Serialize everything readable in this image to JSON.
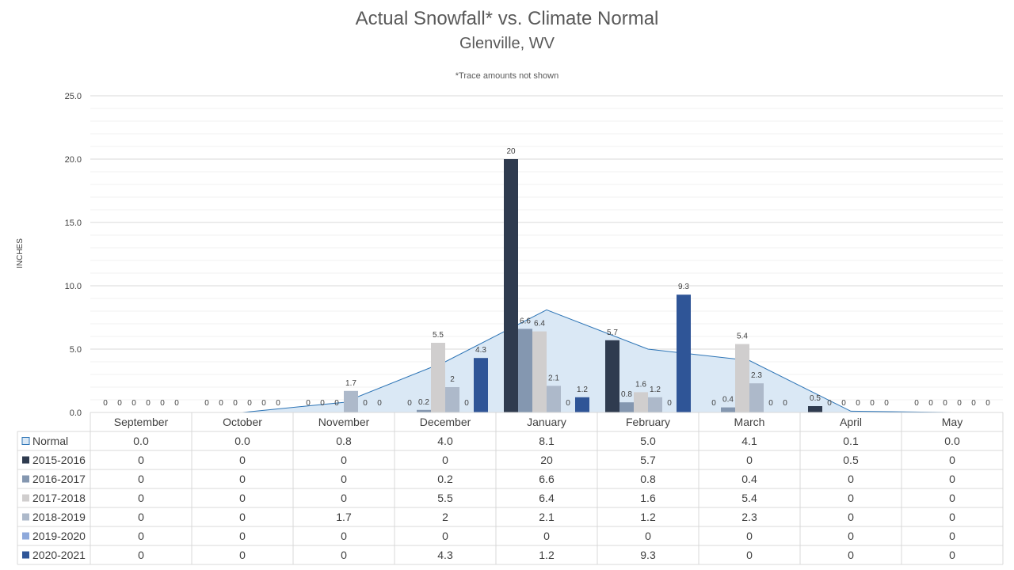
{
  "title": "Actual Snowfall* vs. Climate Normal",
  "subtitle": "Glenville, WV",
  "note": "*Trace amounts not shown",
  "chart_data": {
    "type": "bar",
    "ylabel": "INCHES",
    "ylim": [
      0,
      25
    ],
    "yticks": [
      "0.0",
      "5.0",
      "10.0",
      "15.0",
      "20.0",
      "25.0"
    ],
    "categories": [
      "September",
      "October",
      "November",
      "December",
      "January",
      "February",
      "March",
      "April",
      "May"
    ],
    "normal": {
      "name": "Normal",
      "type": "area",
      "values": [
        0.0,
        0.0,
        0.8,
        4.0,
        8.1,
        5.0,
        4.1,
        0.1,
        0.0
      ],
      "labels": [
        "0.0",
        "0.0",
        "0.8",
        "4.0",
        "8.1",
        "5.0",
        "4.1",
        "0.1",
        "0.0"
      ],
      "color": "#DAE8F5",
      "line_color": "#2E75B6"
    },
    "series": [
      {
        "name": "2015-2016",
        "color": "#2F3B4F",
        "values": [
          0,
          0,
          0,
          0,
          20,
          5.7,
          0,
          0.5,
          0
        ]
      },
      {
        "name": "2016-2017",
        "color": "#8497B0",
        "values": [
          0,
          0,
          0,
          0.2,
          6.6,
          0.8,
          0.4,
          0,
          0
        ]
      },
      {
        "name": "2017-2018",
        "color": "#D0CECE",
        "values": [
          0,
          0,
          0,
          5.5,
          6.4,
          1.6,
          5.4,
          0,
          0
        ]
      },
      {
        "name": "2018-2019",
        "color": "#ADB9CA",
        "values": [
          0,
          0,
          1.7,
          2,
          2.1,
          1.2,
          2.3,
          0,
          0
        ]
      },
      {
        "name": "2019-2020",
        "color": "#8EA9DB",
        "values": [
          0,
          0,
          0,
          0,
          0,
          0,
          0,
          0,
          0
        ]
      },
      {
        "name": "2020-2021",
        "color": "#2F5597",
        "values": [
          0,
          0,
          0,
          4.3,
          1.2,
          9.3,
          0,
          0,
          0
        ]
      }
    ]
  }
}
